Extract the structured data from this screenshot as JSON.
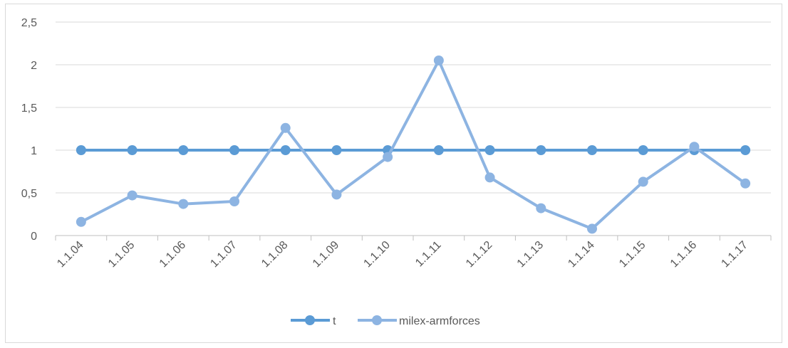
{
  "chart_data": {
    "type": "line",
    "title": "",
    "xlabel": "",
    "ylabel": "",
    "categories": [
      "1.1.04",
      "1.1.05",
      "1.1.06",
      "1.1.07",
      "1.1.08",
      "1.1.09",
      "1.1.10",
      "1.1.11",
      "1.1.12",
      "1.1.13",
      "1.1.14",
      "1.1.15",
      "1.1.16",
      "1.1.17"
    ],
    "ylim": [
      0,
      2.5
    ],
    "yticks": [
      0,
      0.5,
      1,
      1.5,
      2,
      2.5
    ],
    "ytick_labels": [
      "0",
      "0,5",
      "1",
      "1,5",
      "2",
      "2,5"
    ],
    "grid": true,
    "legend_position": "bottom",
    "series": [
      {
        "name": "t",
        "color": "#5b9bd5",
        "values": [
          1,
          1,
          1,
          1,
          1,
          1,
          1,
          1,
          1,
          1,
          1,
          1,
          1,
          1
        ]
      },
      {
        "name": "milex-armforces",
        "color": "#8db4e2",
        "values": [
          0.16,
          0.47,
          0.37,
          0.4,
          1.26,
          0.48,
          0.92,
          2.05,
          0.68,
          0.32,
          0.08,
          0.63,
          1.04,
          0.61
        ]
      }
    ]
  }
}
